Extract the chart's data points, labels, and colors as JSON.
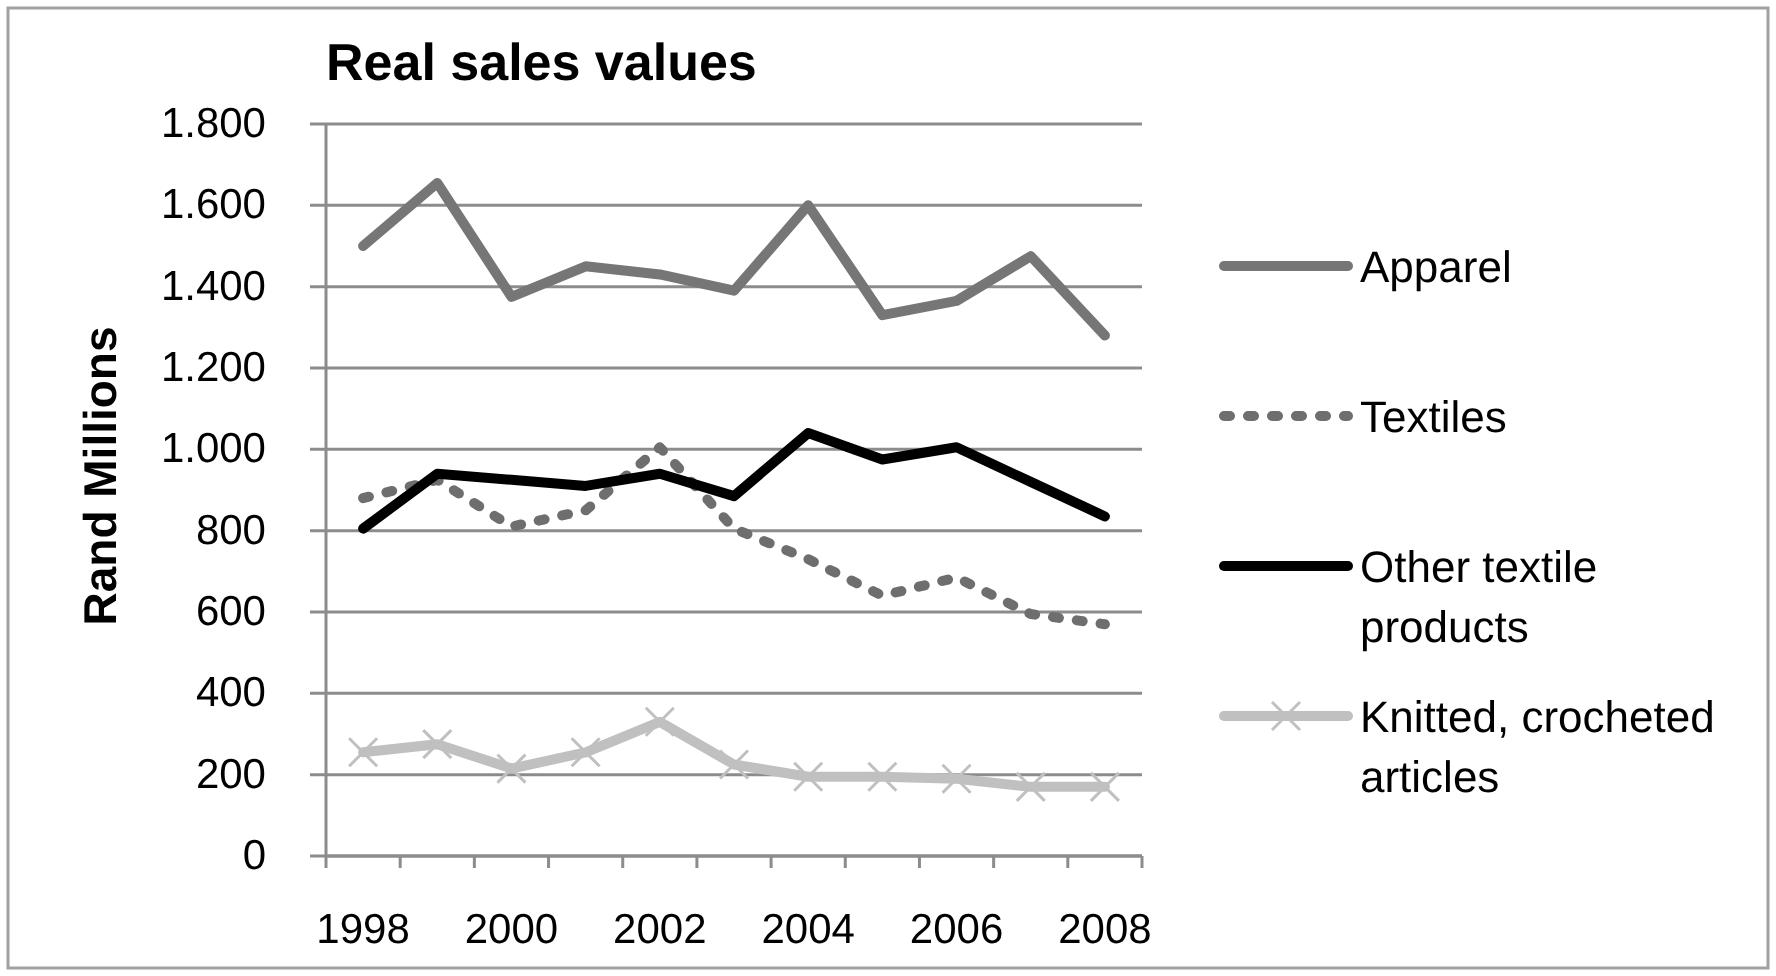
{
  "chart_data": {
    "type": "line",
    "title": "Real sales values",
    "ylabel": "Rand Millions",
    "categories": [
      "1998",
      null,
      "2000",
      null,
      "2002",
      null,
      "2004",
      null,
      "2006",
      null,
      "2008"
    ],
    "series": [
      {
        "name": "Apparel",
        "color": "#767676",
        "line_style": "solid",
        "values": [
          1500,
          1655,
          1375,
          1450,
          1430,
          1390,
          1600,
          1330,
          1365,
          1475,
          1280
        ]
      },
      {
        "name": "Textiles",
        "color": "#6e6e6e",
        "line_style": "dashed",
        "values": [
          880,
          925,
          810,
          850,
          1005,
          805,
          730,
          640,
          685,
          595,
          570
        ]
      },
      {
        "name": "Other textile products",
        "color": "#000000",
        "line_style": "solid",
        "values": [
          805,
          940,
          925,
          910,
          940,
          885,
          1040,
          975,
          1005,
          920,
          835
        ]
      },
      {
        "name": "Knitted, crocheted articles",
        "color": "#c0c0c0",
        "line_style": "solid",
        "marker": "cross",
        "values": [
          255,
          275,
          215,
          255,
          330,
          225,
          195,
          195,
          190,
          170,
          170
        ]
      }
    ],
    "ylim": [
      0,
      1800
    ],
    "yticks": [
      0,
      200,
      400,
      600,
      800,
      {
        "value": 1000,
        "label": "1.000"
      },
      {
        "value": 1200,
        "label": "1.200"
      },
      {
        "value": 1400,
        "label": "1.400"
      },
      {
        "value": 1600,
        "label": "1.600"
      },
      {
        "value": 1800,
        "label": "1.800"
      }
    ],
    "grid": "y",
    "legend": "right"
  }
}
